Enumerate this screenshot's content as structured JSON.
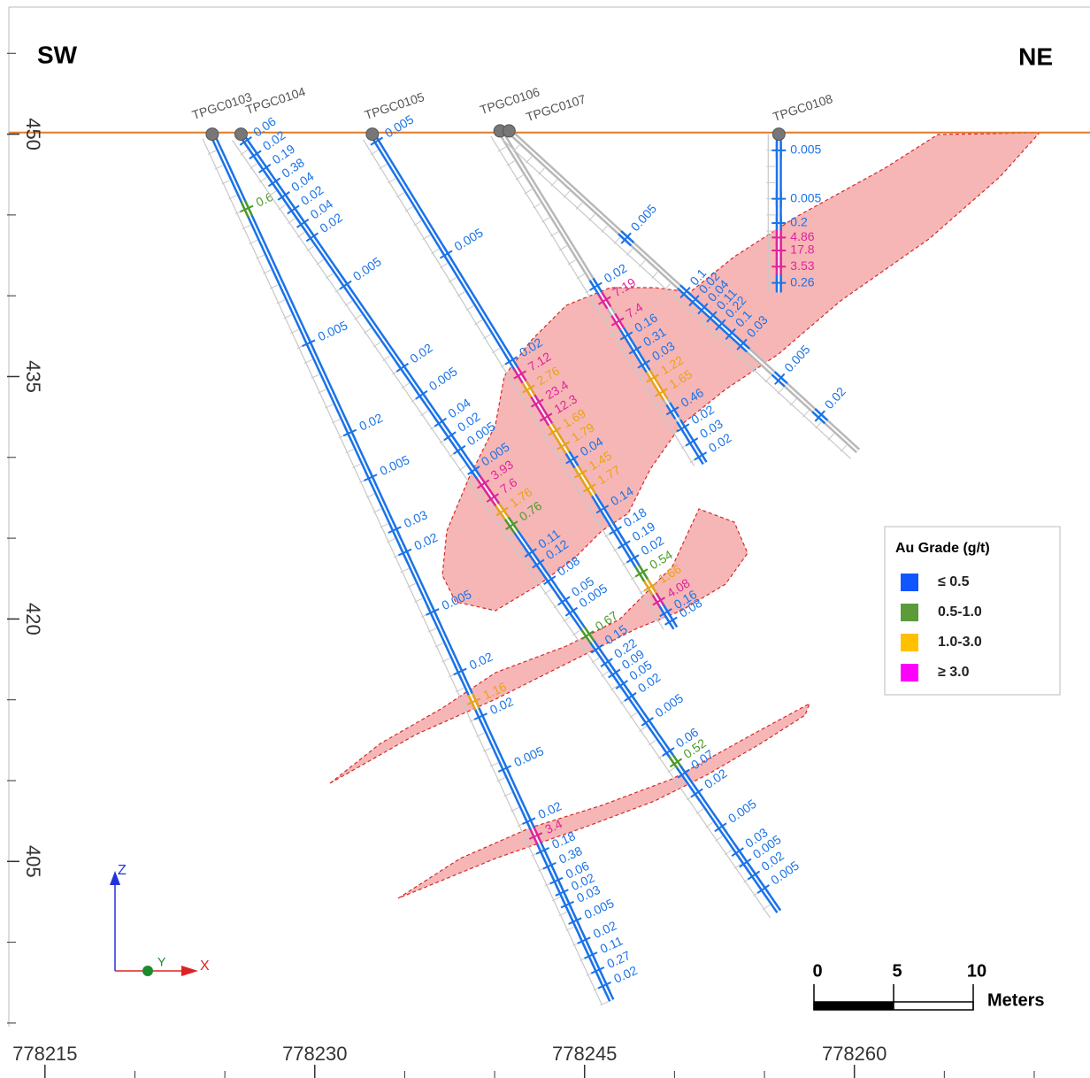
{
  "header": {
    "left": "SW",
    "right": "NE"
  },
  "chart_data": {
    "type": "section",
    "xlim": [
      778212.5,
      778273.1
    ],
    "ylim": [
      391.6,
      458.3
    ],
    "xticks": [
      778215,
      778230,
      778245,
      778260
    ],
    "yticks": [
      450,
      435,
      420,
      405
    ],
    "surface_z": 450.1,
    "surface_color": "#e07b2a",
    "holes": [
      {
        "name": "TPGC0103",
        "collar": [
          778224.3,
          450
        ],
        "end": [
          778246.5,
          396.4
        ],
        "color": "#1a73e8",
        "assays": [
          {
            "depth": 5,
            "value": 0.6,
            "color": "#4c9a2a"
          },
          {
            "depth": 14,
            "value": 0.005,
            "color": "#1a73e8"
          },
          {
            "depth": 20,
            "value": 0.02,
            "color": "#1a73e8"
          },
          {
            "depth": 23,
            "value": 0.005,
            "color": "#1a73e8"
          },
          {
            "depth": 26.5,
            "value": 0.03,
            "color": "#1a73e8"
          },
          {
            "depth": 28,
            "value": 0.02,
            "color": "#1a73e8"
          },
          {
            "depth": 32,
            "value": 0.005,
            "color": "#1a73e8"
          },
          {
            "depth": 36,
            "value": 0.02,
            "color": "#1a73e8"
          },
          {
            "depth": 38,
            "value": 1.16,
            "color": "#e8a317"
          },
          {
            "depth": 39,
            "value": 0.02,
            "color": "#1a73e8"
          },
          {
            "depth": 42.5,
            "value": 0.005,
            "color": "#1a73e8"
          },
          {
            "depth": 46,
            "value": 0.02,
            "color": "#1a73e8"
          },
          {
            "depth": 47,
            "value": 3.4,
            "color": "#e0249a"
          },
          {
            "depth": 48,
            "value": 0.18,
            "color": "#1a73e8"
          },
          {
            "depth": 49,
            "value": 0.38,
            "color": "#1a73e8"
          },
          {
            "depth": 50,
            "value": 0.06,
            "color": "#1a73e8"
          },
          {
            "depth": 50.8,
            "value": 0.02,
            "color": "#1a73e8"
          },
          {
            "depth": 51.6,
            "value": 0.03,
            "color": "#1a73e8"
          },
          {
            "depth": 52.7,
            "value": 0.005,
            "color": "#1a73e8"
          },
          {
            "depth": 54,
            "value": 0.02,
            "color": "#1a73e8"
          },
          {
            "depth": 55,
            "value": 0.11,
            "color": "#1a73e8"
          },
          {
            "depth": 56,
            "value": 0.27,
            "color": "#1a73e8"
          },
          {
            "depth": 57,
            "value": 0.02,
            "color": "#1a73e8"
          }
        ]
      },
      {
        "name": "TPGC0104",
        "collar": [
          778225.9,
          450
        ],
        "end": [
          778255.8,
          401.9
        ],
        "color": "#1a73e8",
        "assays": [
          {
            "depth": 0.5,
            "value": 0.06,
            "color": "#1a73e8"
          },
          {
            "depth": 1.5,
            "value": 0.02,
            "color": "#1a73e8"
          },
          {
            "depth": 2.5,
            "value": 0.19,
            "color": "#1a73e8"
          },
          {
            "depth": 3.5,
            "value": 0.38,
            "color": "#1a73e8"
          },
          {
            "depth": 4.5,
            "value": 0.04,
            "color": "#1a73e8"
          },
          {
            "depth": 5.5,
            "value": 0.02,
            "color": "#1a73e8"
          },
          {
            "depth": 6.5,
            "value": 0.04,
            "color": "#1a73e8"
          },
          {
            "depth": 7.5,
            "value": 0.02,
            "color": "#1a73e8"
          },
          {
            "depth": 11,
            "value": 0.005,
            "color": "#1a73e8"
          },
          {
            "depth": 17,
            "value": 0.02,
            "color": "#1a73e8"
          },
          {
            "depth": 19,
            "value": 0.005,
            "color": "#1a73e8"
          },
          {
            "depth": 21,
            "value": 0.04,
            "color": "#1a73e8"
          },
          {
            "depth": 22,
            "value": 0.02,
            "color": "#1a73e8"
          },
          {
            "depth": 23,
            "value": 0.005,
            "color": "#1a73e8"
          },
          {
            "depth": 24.5,
            "value": 0.005,
            "color": "#1a73e8"
          },
          {
            "depth": 25.5,
            "value": 3.93,
            "color": "#e0249a"
          },
          {
            "depth": 26.5,
            "value": 7.6,
            "color": "#e0249a"
          },
          {
            "depth": 27.5,
            "value": 1.76,
            "color": "#e8a317"
          },
          {
            "depth": 28.5,
            "value": 0.76,
            "color": "#4c9a2a"
          },
          {
            "depth": 30.5,
            "value": 0.11,
            "color": "#1a73e8"
          },
          {
            "depth": 31.3,
            "value": 0.12,
            "color": "#1a73e8"
          },
          {
            "depth": 32.5,
            "value": 0.08,
            "color": "#1a73e8"
          },
          {
            "depth": 34,
            "value": 0.05,
            "color": "#1a73e8"
          },
          {
            "depth": 34.8,
            "value": 0.005,
            "color": "#1a73e8"
          },
          {
            "depth": 36.5,
            "value": 0.67,
            "color": "#4c9a2a"
          },
          {
            "depth": 37.5,
            "value": 0.15,
            "color": "#1a73e8"
          },
          {
            "depth": 38.5,
            "value": 0.22,
            "color": "#1a73e8"
          },
          {
            "depth": 39.3,
            "value": 0.09,
            "color": "#1a73e8"
          },
          {
            "depth": 40.1,
            "value": 0.05,
            "color": "#1a73e8"
          },
          {
            "depth": 41,
            "value": 0.02,
            "color": "#1a73e8"
          },
          {
            "depth": 42.8,
            "value": 0.005,
            "color": "#1a73e8"
          },
          {
            "depth": 45,
            "value": 0.06,
            "color": "#1a73e8"
          },
          {
            "depth": 45.8,
            "value": 0.52,
            "color": "#4c9a2a"
          },
          {
            "depth": 46.6,
            "value": 0.07,
            "color": "#1a73e8"
          },
          {
            "depth": 48,
            "value": 0.02,
            "color": "#1a73e8"
          },
          {
            "depth": 50.5,
            "value": 0.005,
            "color": "#1a73e8"
          },
          {
            "depth": 52.3,
            "value": 0.03,
            "color": "#1a73e8"
          },
          {
            "depth": 53.1,
            "value": 0.005,
            "color": "#1a73e8"
          },
          {
            "depth": 54,
            "value": 0.02,
            "color": "#1a73e8"
          },
          {
            "depth": 55,
            "value": 0.005,
            "color": "#1a73e8"
          }
        ]
      },
      {
        "name": "TPGC0105",
        "collar": [
          778233.2,
          450
        ],
        "end": [
          778249.9,
          419.7
        ],
        "color": "#1a73e8",
        "assays": [
          {
            "depth": 0.5,
            "value": 0.005,
            "color": "#1a73e8"
          },
          {
            "depth": 8.5,
            "value": 0.005,
            "color": "#1a73e8"
          },
          {
            "depth": 16,
            "value": 0.02,
            "color": "#1a73e8"
          },
          {
            "depth": 17,
            "value": 7.12,
            "color": "#e0249a"
          },
          {
            "depth": 18,
            "value": 2.76,
            "color": "#e8a317"
          },
          {
            "depth": 19,
            "value": 23.4,
            "color": "#e0249a"
          },
          {
            "depth": 20,
            "value": 12.3,
            "color": "#e0249a"
          },
          {
            "depth": 21,
            "value": 1.69,
            "color": "#e8a317"
          },
          {
            "depth": 22,
            "value": 1.79,
            "color": "#e8a317"
          },
          {
            "depth": 23,
            "value": 0.04,
            "color": "#1a73e8"
          },
          {
            "depth": 24,
            "value": 1.45,
            "color": "#e8a317"
          },
          {
            "depth": 25,
            "value": 1.77,
            "color": "#e8a317"
          },
          {
            "depth": 26.5,
            "value": 0.14,
            "color": "#1a73e8"
          },
          {
            "depth": 28,
            "value": 0.18,
            "color": "#1a73e8"
          },
          {
            "depth": 29,
            "value": 0.19,
            "color": "#1a73e8"
          },
          {
            "depth": 30,
            "value": 0.02,
            "color": "#1a73e8"
          },
          {
            "depth": 31,
            "value": 0.54,
            "color": "#4c9a2a"
          },
          {
            "depth": 32,
            "value": 1.66,
            "color": "#e8a317"
          },
          {
            "depth": 33,
            "value": 4.08,
            "color": "#e0249a"
          },
          {
            "depth": 33.8,
            "value": 0.16,
            "color": "#1a73e8"
          },
          {
            "depth": 34.4,
            "value": 0.08,
            "color": "#1a73e8"
          }
        ]
      },
      {
        "name": "TPGC0106",
        "collar": [
          778240.3,
          450.2
        ],
        "end": [
          778251.6,
          429.8
        ],
        "color": "#b8b8b8",
        "assays": [
          {
            "depth": 11,
            "value": 0.02,
            "color": "#1a73e8"
          },
          {
            "depth": 12,
            "value": 7.19,
            "color": "#e0249a"
          },
          {
            "depth": 13.5,
            "value": 7.4,
            "color": "#e0249a"
          },
          {
            "depth": 14.5,
            "value": 0.16,
            "color": "#1a73e8"
          },
          {
            "depth": 15.5,
            "value": 0.31,
            "color": "#1a73e8"
          },
          {
            "depth": 16.5,
            "value": 0.03,
            "color": "#1a73e8"
          },
          {
            "depth": 17.5,
            "value": 1.22,
            "color": "#e8a317"
          },
          {
            "depth": 18.5,
            "value": 1.65,
            "color": "#e8a317"
          },
          {
            "depth": 19.8,
            "value": 0.46,
            "color": "#1a73e8"
          },
          {
            "depth": 21,
            "value": 0.02,
            "color": "#1a73e8"
          },
          {
            "depth": 22,
            "value": 0.03,
            "color": "#1a73e8"
          },
          {
            "depth": 23,
            "value": 0.02,
            "color": "#1a73e8"
          }
        ]
      },
      {
        "name": "TPGC0107",
        "collar": [
          778240.8,
          450.2
        ],
        "end": [
          778260.2,
          430.4
        ],
        "color": "#b8b8b8",
        "assays": [
          {
            "depth": 9.3,
            "value": 0.005,
            "color": "#1a73e8"
          },
          {
            "depth": 14,
            "value": 0.1,
            "color": "#1a73e8"
          },
          {
            "depth": 14.7,
            "value": 0.02,
            "color": "#1a73e8"
          },
          {
            "depth": 15.4,
            "value": 0.04,
            "color": "#1a73e8"
          },
          {
            "depth": 16.1,
            "value": 0.11,
            "color": "#1a73e8"
          },
          {
            "depth": 16.8,
            "value": 0.22,
            "color": "#1a73e8"
          },
          {
            "depth": 17.6,
            "value": 0.1,
            "color": "#1a73e8"
          },
          {
            "depth": 18.5,
            "value": 0.03,
            "color": "#1a73e8"
          },
          {
            "depth": 21.5,
            "value": 0.005,
            "color": "#1a73e8"
          },
          {
            "depth": 24.7,
            "value": 0.02,
            "color": "#1a73e8"
          }
        ]
      },
      {
        "name": "TPGC0108",
        "collar": [
          778255.8,
          450
        ],
        "end": [
          778255.8,
          440.2
        ],
        "color": "#1a73e8",
        "assays": [
          {
            "depth": 1,
            "value": 0.005,
            "color": "#1a73e8"
          },
          {
            "depth": 4,
            "value": 0.005,
            "color": "#1a73e8"
          },
          {
            "depth": 5.5,
            "value": 0.2,
            "color": "#1a73e8"
          },
          {
            "depth": 6.4,
            "value": 4.86,
            "color": "#e0249a"
          },
          {
            "depth": 7.2,
            "value": 17.8,
            "color": "#e0249a"
          },
          {
            "depth": 8.2,
            "value": 3.53,
            "color": "#e0249a"
          },
          {
            "depth": 9.2,
            "value": 0.26,
            "color": "#1a73e8"
          }
        ]
      }
    ],
    "legend": {
      "title": "Au Grade (g/t)",
      "items": [
        {
          "label": "≤ 0.5",
          "color": "#1155ff"
        },
        {
          "label": "0.5-1.0",
          "color": "#5b9b3a"
        },
        {
          "label": "1.0-3.0",
          "color": "#ffc000"
        },
        {
          "label": "≥ 3.0",
          "color": "#ff00ff"
        }
      ]
    },
    "scale_bar": {
      "ticks": [
        0,
        5,
        10
      ],
      "unit": "Meters"
    },
    "axes_triad": {
      "z": "Z",
      "y": "Y",
      "x": "X"
    }
  }
}
